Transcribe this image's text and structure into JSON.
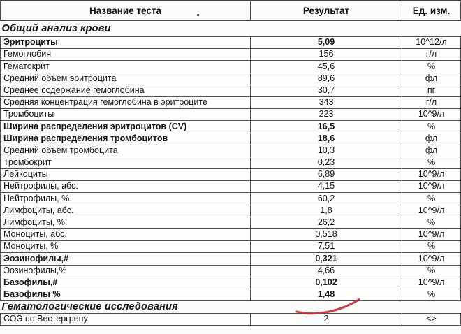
{
  "header": {
    "columns": [
      "Название теста",
      "Результат",
      "Ед. изм."
    ]
  },
  "rows": [
    {
      "type": "section",
      "label": "Общий анализ крови"
    },
    {
      "type": "test",
      "name": "Эритроциты",
      "result": "5,09",
      "unit": "10^12/л",
      "bold": true
    },
    {
      "type": "test",
      "name": "Гемоглобин",
      "result": "156",
      "unit": "г/л",
      "bold": false
    },
    {
      "type": "test",
      "name": "Гематокрит",
      "result": "45,6",
      "unit": "%",
      "bold": false
    },
    {
      "type": "test",
      "name": "Средний объем эритроцита",
      "result": "89,6",
      "unit": "фл",
      "bold": false
    },
    {
      "type": "test",
      "name": "Среднее содержание гемоглобина",
      "result": "30,7",
      "unit": "пг",
      "bold": false
    },
    {
      "type": "test",
      "name": "Средняя концентрация гемоглобина в эритроците",
      "result": "343",
      "unit": "г/л",
      "bold": false
    },
    {
      "type": "test",
      "name": "Тромбоциты",
      "result": "223",
      "unit": "10^9/л",
      "bold": false
    },
    {
      "type": "test",
      "name": "Ширина распределения эритроцитов (CV)",
      "result": "16,5",
      "unit": "%",
      "bold": true
    },
    {
      "type": "test",
      "name": "Ширина распределения тромбоцитов",
      "result": "18,6",
      "unit": "фл",
      "bold": true
    },
    {
      "type": "test",
      "name": "Средний объем тромбоцита",
      "result": "10,3",
      "unit": "фл",
      "bold": false
    },
    {
      "type": "test",
      "name": "Тромбокрит",
      "result": "0,23",
      "unit": "%",
      "bold": false
    },
    {
      "type": "test",
      "name": "Лейкоциты",
      "result": "6,89",
      "unit": "10^9/л",
      "bold": false
    },
    {
      "type": "test",
      "name": "Нейтрофилы, абс.",
      "result": "4,15",
      "unit": "10^9/л",
      "bold": false
    },
    {
      "type": "test",
      "name": "Нейтрофилы, %",
      "result": "60,2",
      "unit": "%",
      "bold": false
    },
    {
      "type": "test",
      "name": "Лимфоциты, абс.",
      "result": "1,8",
      "unit": "10^9/л",
      "bold": false
    },
    {
      "type": "test",
      "name": "Лимфоциты, %",
      "result": "26,2",
      "unit": "%",
      "bold": false
    },
    {
      "type": "test",
      "name": "Моноциты, абс.",
      "result": "0,518",
      "unit": "10^9/л",
      "bold": false
    },
    {
      "type": "test",
      "name": "Моноциты, %",
      "result": "7,51",
      "unit": "%",
      "bold": false
    },
    {
      "type": "test",
      "name": "Эозинофилы,#",
      "result": "0,321",
      "unit": "10^9/л",
      "bold": true
    },
    {
      "type": "test",
      "name": "Эозинофилы,%",
      "result": "4,66",
      "unit": "%",
      "bold": false
    },
    {
      "type": "test",
      "name": "Базофилы,#",
      "result": "0,102",
      "unit": "10^9/л",
      "bold": true
    },
    {
      "type": "test",
      "name": "Базофилы %",
      "result": "1,48",
      "unit": "%",
      "bold": true,
      "marked": "red-pen-underline"
    },
    {
      "type": "section",
      "label": "Гематологические исследования"
    },
    {
      "type": "test",
      "name": "СОЭ по Вестергрену",
      "result": "2",
      "unit": "<>",
      "bold": false
    }
  ],
  "annotations": {
    "red_pen_underline": {
      "under_value": "1,48",
      "row": "Базофилы %"
    }
  },
  "colors": {
    "pen_red": "#c22f3a",
    "border": "#4f4f4f",
    "text": "#141414",
    "background": "#fcfcfb"
  }
}
